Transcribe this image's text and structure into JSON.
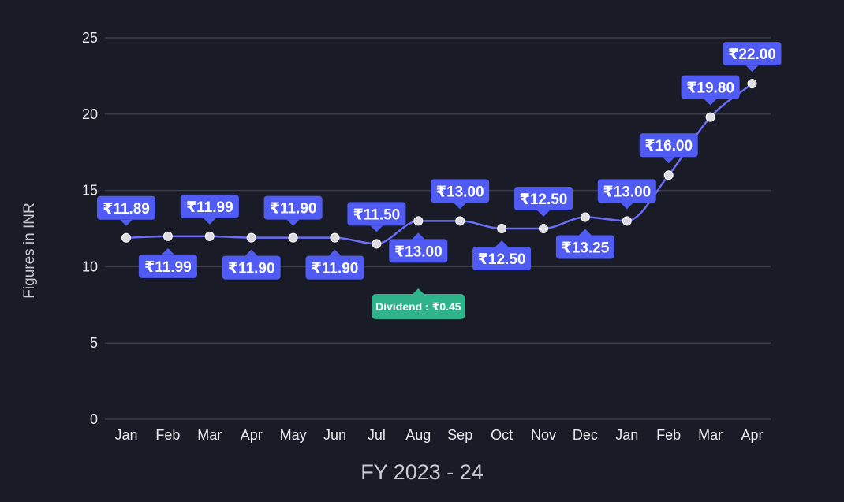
{
  "colors": {
    "background": "#191b27",
    "grid": "#3a3c48",
    "line": "#6a6df5",
    "point_fill": "#dcdce2",
    "label_bg": "#4f5bf2",
    "dividend_bg": "#2fb38b",
    "text": "#ffffff",
    "axis_text": "#e8e8ec",
    "axis_title": "#c9cad2"
  },
  "chart_data": {
    "type": "line",
    "xlabel": "FY 2023 - 24",
    "ylabel": "Figures in INR",
    "ylim": [
      0,
      25
    ],
    "yticks": [
      0,
      5,
      10,
      15,
      20,
      25
    ],
    "grid": true,
    "categories": [
      "Jan",
      "Feb",
      "Mar",
      "Apr",
      "May",
      "Jun",
      "Jul",
      "Aug",
      "Sep",
      "Oct",
      "Nov",
      "Dec",
      "Jan",
      "Feb",
      "Mar",
      "Apr"
    ],
    "values": [
      11.89,
      11.99,
      11.99,
      11.9,
      11.9,
      11.9,
      11.5,
      13.0,
      13.0,
      12.5,
      12.5,
      13.25,
      13.0,
      16.0,
      19.8,
      22.0
    ],
    "data_labels": [
      "₹11.89",
      "₹11.99",
      "₹11.99",
      "₹11.90",
      "₹11.90",
      "₹11.90",
      "₹11.50",
      "₹13.00",
      "₹13.00",
      "₹12.50",
      "₹12.50",
      "₹13.25",
      "₹13.00",
      "₹16.00",
      "₹19.80",
      "₹22.00"
    ],
    "label_positions": [
      "above",
      "below",
      "above",
      "below",
      "above",
      "below",
      "above",
      "below",
      "above",
      "below",
      "above",
      "below",
      "above",
      "above",
      "above",
      "above"
    ],
    "annotations": [
      {
        "category_index": 7,
        "text": "Dividend : ₹0.45"
      }
    ]
  }
}
